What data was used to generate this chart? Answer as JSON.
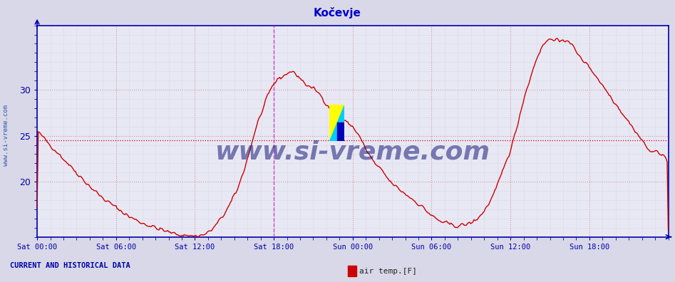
{
  "title": "Kočevje",
  "title_color": "#0000cc",
  "bg_color": "#d8d8e8",
  "plot_bg_color": "#e8e8f4",
  "line_color": "#cc0000",
  "grid_color_major": "#cc9999",
  "grid_color_minor": "#c8c8dc",
  "axis_color": "#0000aa",
  "watermark_text": "www.si-vreme.com",
  "watermark_color": "#1a1a7a",
  "sidebar_text": "www.si-vreme.com",
  "sidebar_color": "#3355aa",
  "footer_left": "CURRENT AND HISTORICAL DATA",
  "footer_legend": "air temp.[F]",
  "legend_color": "#cc0000",
  "xlim": [
    0,
    576
  ],
  "ylim": [
    14,
    37
  ],
  "yticks": [
    20,
    25,
    30
  ],
  "xtick_labels": [
    "Sat 00:00",
    "Sat 06:00",
    "Sat 12:00",
    "Sat 18:00",
    "Sun 00:00",
    "Sun 06:00",
    "Sun 12:00",
    "Sun 18:00"
  ],
  "xtick_positions": [
    0,
    72,
    144,
    216,
    288,
    360,
    432,
    504
  ],
  "vertical_line_x": 216,
  "horizontal_line_value": 24.5,
  "dashed_hline_color": "#cc0000",
  "dashed_vline_color": "#cc44cc",
  "keypoints": [
    [
      0,
      25.5
    ],
    [
      12,
      24.0
    ],
    [
      24,
      22.5
    ],
    [
      36,
      21.0
    ],
    [
      48,
      19.5
    ],
    [
      60,
      18.2
    ],
    [
      72,
      17.2
    ],
    [
      84,
      16.2
    ],
    [
      96,
      15.5
    ],
    [
      108,
      15.0
    ],
    [
      120,
      14.5
    ],
    [
      132,
      14.2
    ],
    [
      144,
      14.1
    ],
    [
      152,
      14.2
    ],
    [
      160,
      14.8
    ],
    [
      168,
      16.0
    ],
    [
      176,
      17.5
    ],
    [
      184,
      19.5
    ],
    [
      192,
      22.5
    ],
    [
      200,
      26.0
    ],
    [
      208,
      28.5
    ],
    [
      215,
      30.5
    ],
    [
      220,
      31.2
    ],
    [
      225,
      31.5
    ],
    [
      228,
      31.8
    ],
    [
      232,
      32.0
    ],
    [
      235,
      31.8
    ],
    [
      238,
      31.5
    ],
    [
      242,
      31.0
    ],
    [
      246,
      30.5
    ],
    [
      250,
      30.2
    ],
    [
      254,
      30.0
    ],
    [
      258,
      29.5
    ],
    [
      264,
      28.5
    ],
    [
      270,
      27.5
    ],
    [
      276,
      27.0
    ],
    [
      282,
      26.5
    ],
    [
      288,
      26.0
    ],
    [
      294,
      25.0
    ],
    [
      300,
      23.5
    ],
    [
      308,
      22.0
    ],
    [
      316,
      21.0
    ],
    [
      322,
      20.0
    ],
    [
      330,
      19.2
    ],
    [
      338,
      18.5
    ],
    [
      346,
      17.8
    ],
    [
      354,
      17.0
    ],
    [
      360,
      16.3
    ],
    [
      366,
      15.8
    ],
    [
      372,
      15.5
    ],
    [
      378,
      15.3
    ],
    [
      384,
      15.2
    ],
    [
      390,
      15.3
    ],
    [
      396,
      15.5
    ],
    [
      402,
      16.0
    ],
    [
      408,
      16.8
    ],
    [
      414,
      18.0
    ],
    [
      420,
      19.5
    ],
    [
      426,
      21.5
    ],
    [
      432,
      23.5
    ],
    [
      436,
      25.0
    ],
    [
      440,
      27.0
    ],
    [
      444,
      29.0
    ],
    [
      448,
      30.5
    ],
    [
      452,
      32.0
    ],
    [
      456,
      33.5
    ],
    [
      460,
      34.5
    ],
    [
      464,
      35.2
    ],
    [
      468,
      35.5
    ],
    [
      472,
      35.6
    ],
    [
      474,
      35.5
    ],
    [
      476,
      35.3
    ],
    [
      478,
      35.0
    ],
    [
      480,
      35.2
    ],
    [
      482,
      35.4
    ],
    [
      484,
      35.5
    ],
    [
      486,
      35.3
    ],
    [
      488,
      35.0
    ],
    [
      490,
      34.5
    ],
    [
      492,
      34.0
    ],
    [
      496,
      33.5
    ],
    [
      500,
      33.0
    ],
    [
      504,
      32.5
    ],
    [
      510,
      31.5
    ],
    [
      516,
      30.5
    ],
    [
      522,
      29.5
    ],
    [
      528,
      28.5
    ],
    [
      534,
      27.5
    ],
    [
      540,
      26.5
    ],
    [
      546,
      25.5
    ],
    [
      552,
      24.5
    ],
    [
      558,
      23.5
    ],
    [
      562,
      23.0
    ],
    [
      566,
      23.5
    ],
    [
      570,
      23.0
    ],
    [
      574,
      22.5
    ],
    [
      576,
      22.0
    ]
  ]
}
